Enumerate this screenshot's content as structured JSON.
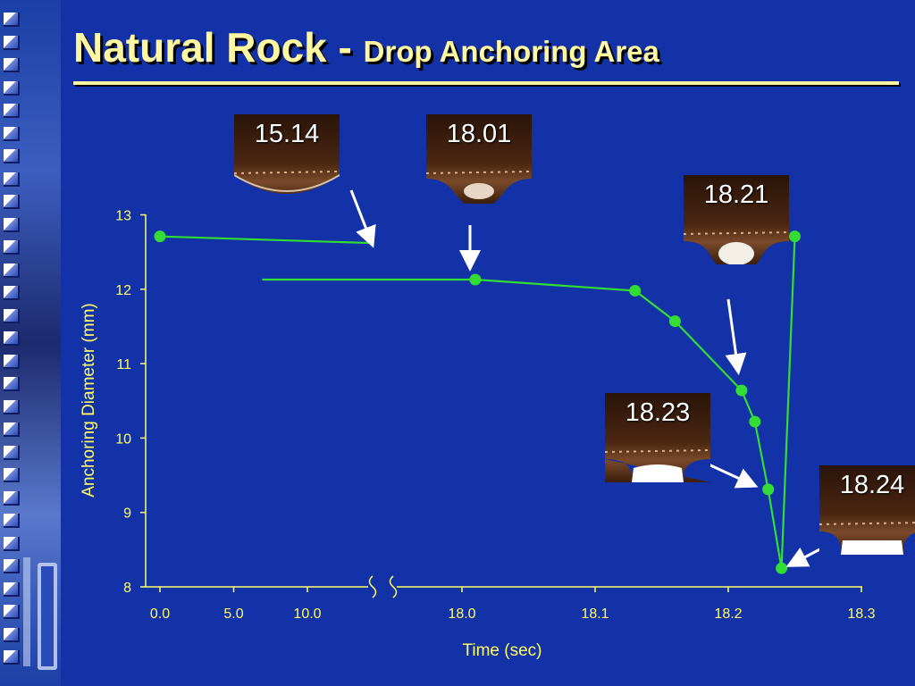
{
  "title": {
    "main": "Natural Rock - ",
    "sub": "Drop Anchoring Area"
  },
  "chart_data": {
    "type": "line",
    "xlabel": "Time (sec)",
    "ylabel": "Anchoring Diameter (mm)",
    "ylim": [
      8,
      13
    ],
    "yticks": [
      "8",
      "9",
      "10",
      "11",
      "12",
      "13"
    ],
    "xticks": [
      "0.0",
      "5.0",
      "10.0",
      "18.0",
      "18.1",
      "18.2",
      "18.3"
    ],
    "axis_break": "between 10.0 and 18.0",
    "series": [
      {
        "segment": "early",
        "points": [
          {
            "x": 0.0,
            "y": 12.71
          },
          {
            "x": 14.5,
            "y": 12.62
          }
        ]
      },
      {
        "segment": "late",
        "points": [
          {
            "x": 17.85,
            "y": 12.13
          },
          {
            "x": 18.01,
            "y": 12.13
          },
          {
            "x": 18.13,
            "y": 11.98
          },
          {
            "x": 18.16,
            "y": 11.57
          },
          {
            "x": 18.21,
            "y": 10.64
          },
          {
            "x": 18.22,
            "y": 10.22
          },
          {
            "x": 18.23,
            "y": 9.31
          },
          {
            "x": 18.24,
            "y": 8.25
          },
          {
            "x": 18.25,
            "y": 12.71
          }
        ]
      }
    ],
    "line_color": "#33dd33",
    "annotations": [
      {
        "label": "15.14",
        "x": 14.5,
        "y": 12.62
      },
      {
        "label": "18.01",
        "x": 18.01,
        "y": 12.13
      },
      {
        "label": "18.21",
        "x": 18.21,
        "y": 10.64
      },
      {
        "label": "18.23",
        "x": 18.23,
        "y": 9.31
      },
      {
        "label": "18.24",
        "x": 18.24,
        "y": 8.25
      }
    ]
  },
  "colors": {
    "background": "#1332a8",
    "title": "#fff7a0",
    "axis_text": "#ffff66",
    "line": "#33dd33"
  }
}
